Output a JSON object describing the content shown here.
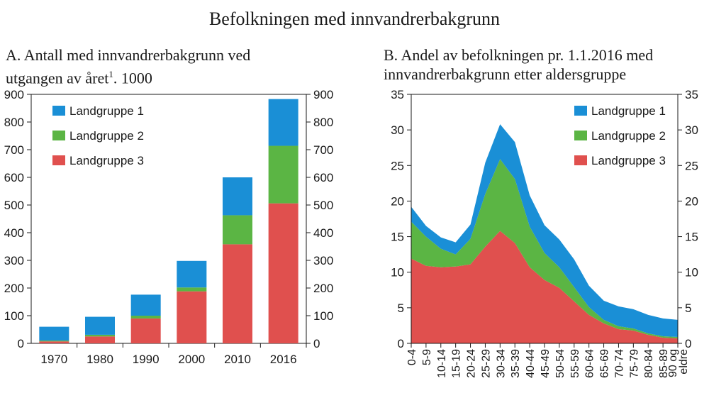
{
  "figure_title": "Befolkningen med innvandrerbakgrunn",
  "panel_a": {
    "letter": "A.",
    "title_line1": "Antall med innvandrerbakgrunn ved",
    "title_line2a": "utgangen av året",
    "title_sup": "1",
    "title_line2b": ". 1000"
  },
  "panel_b": {
    "letter": "B.",
    "title_line1": "Andel av befolkningen pr. 1.1.2016 med",
    "title_line2": "innvandrerbakgrunn etter aldersgruppe"
  },
  "colors": {
    "landgruppe1": "#1a8fd6",
    "landgruppe2": "#5bb544",
    "landgruppe3": "#e0504e"
  },
  "chart_data": [
    {
      "type": "bar",
      "stacked": true,
      "title": "Antall med innvandrerbakgrunn ved utgangen av året. 1000",
      "categories": [
        "1970",
        "1980",
        "1990",
        "2000",
        "2010",
        "2016"
      ],
      "series": [
        {
          "name": "Landgruppe 3",
          "values": [
            7,
            25,
            90,
            188,
            358,
            506
          ]
        },
        {
          "name": "Landgruppe 2",
          "values": [
            3,
            6,
            10,
            14,
            105,
            208
          ]
        },
        {
          "name": "Landgruppe 1",
          "values": [
            50,
            65,
            76,
            96,
            137,
            169
          ]
        }
      ],
      "ylim": [
        0,
        900
      ],
      "yticks": [
        "0",
        "100",
        "200",
        "300",
        "400",
        "500",
        "600",
        "700",
        "800",
        "900"
      ],
      "legend": [
        "Landgruppe 1",
        "Landgruppe 2",
        "Landgruppe 3"
      ],
      "legend_position": "top-left"
    },
    {
      "type": "area",
      "stacked": true,
      "title": "Andel av befolkningen pr. 1.1.2016 med innvandrerbakgrunn etter aldersgruppe",
      "categories": [
        "0-4",
        "5-9",
        "10-14",
        "15-19",
        "20-24",
        "25-29",
        "30-34",
        "35-39",
        "40-44",
        "45-49",
        "50-54",
        "55-59",
        "60-64",
        "65-69",
        "70-74",
        "75-79",
        "80-84",
        "85-89",
        "90 og eldre"
      ],
      "series": [
        {
          "name": "Landgruppe 3",
          "values": [
            11.9,
            10.9,
            10.7,
            10.8,
            11.1,
            13.6,
            15.8,
            14.1,
            10.7,
            8.9,
            7.8,
            5.9,
            4.0,
            2.8,
            2.0,
            1.8,
            1.2,
            0.8,
            0.7
          ]
        },
        {
          "name": "Landgruppe 2",
          "values": [
            5.2,
            4.1,
            2.6,
            1.7,
            3.6,
            7.4,
            10.1,
            9.0,
            5.7,
            3.8,
            2.9,
            2.0,
            1.1,
            0.5,
            0.4,
            0.3,
            0.2,
            0.2,
            0.2
          ]
        },
        {
          "name": "Landgruppe 1",
          "values": [
            2.1,
            1.5,
            1.6,
            1.7,
            2.0,
            4.4,
            4.9,
            5.2,
            4.4,
            3.9,
            3.9,
            3.9,
            3.0,
            2.7,
            2.8,
            2.7,
            2.6,
            2.5,
            2.4
          ]
        }
      ],
      "ylim": [
        0,
        35
      ],
      "yticks": [
        "0",
        "5",
        "10",
        "15",
        "20",
        "25",
        "30",
        "35"
      ],
      "legend": [
        "Landgruppe 1",
        "Landgruppe 2",
        "Landgruppe 3"
      ],
      "legend_position": "top-right"
    }
  ]
}
